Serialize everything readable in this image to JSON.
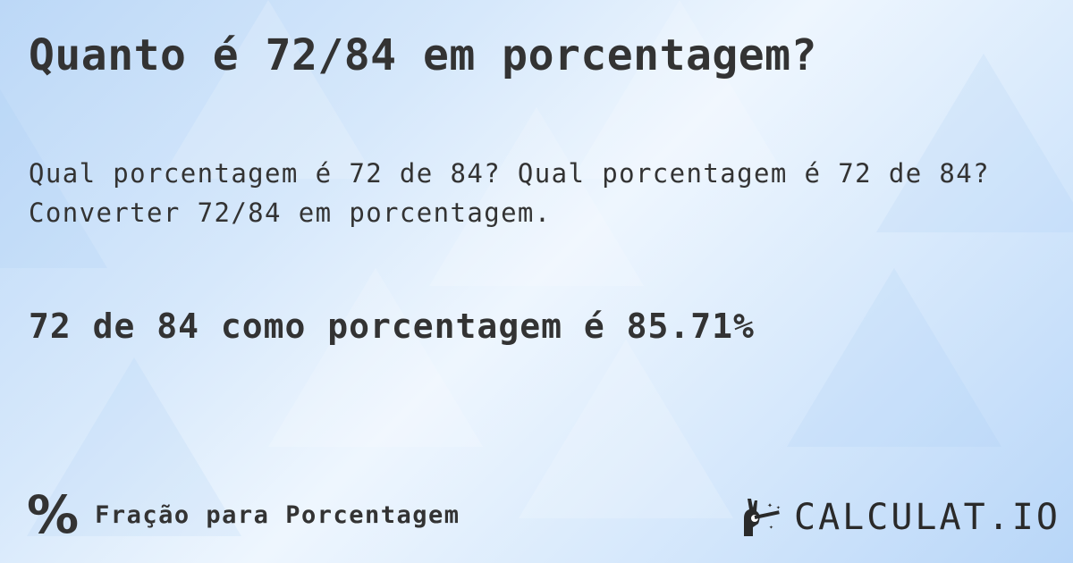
{
  "title": "Quanto é 72/84 em porcentagem?",
  "description": "Qual porcentagem é 72 de 84? Qual porcentagem é 72 de 84? Converter 72/84 em porcentagem.",
  "result": "72 de 84 como porcentagem é 85.71%",
  "footer": {
    "icon": "percent-icon",
    "label": "Fração para Porcentagem"
  },
  "logo": {
    "text": "CALCULAT.IO",
    "icon": "magic-hand-icon"
  },
  "colors": {
    "text": "#333333",
    "background": "#cfe3fa"
  }
}
